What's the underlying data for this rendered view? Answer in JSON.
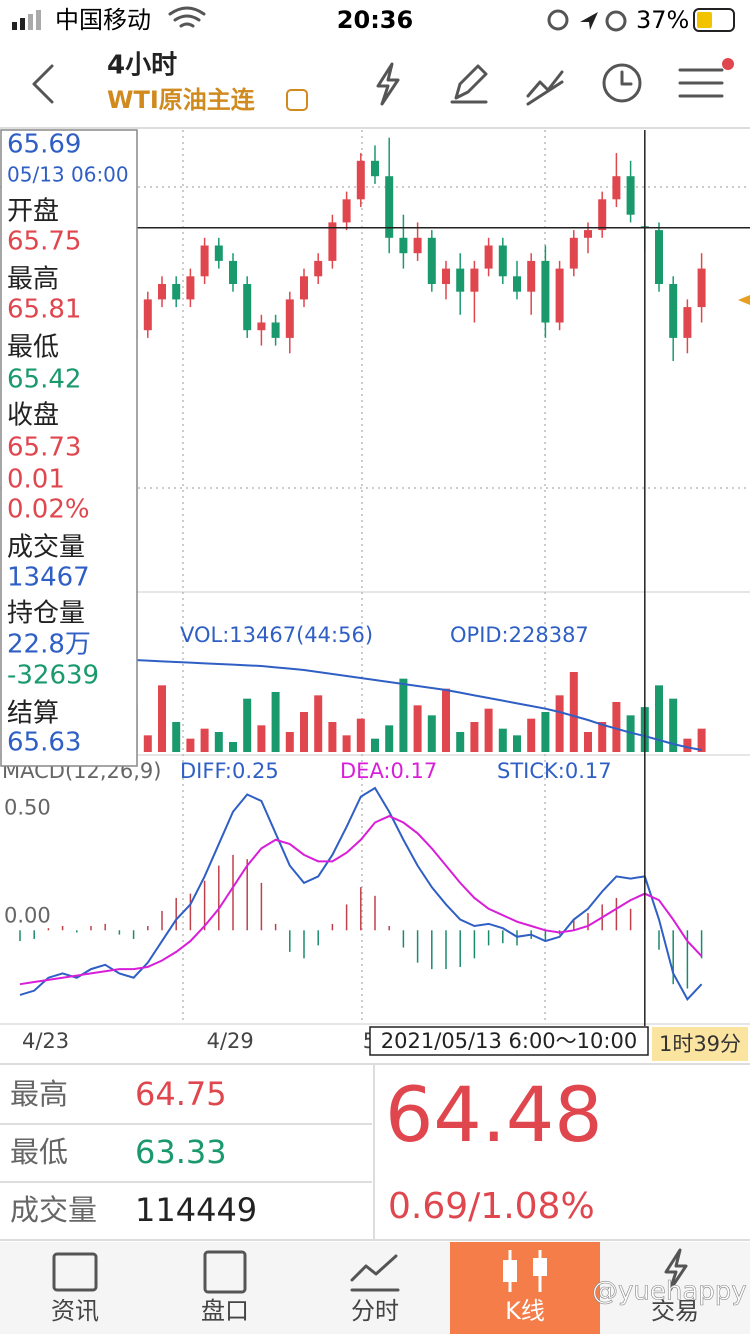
{
  "status_bar": {
    "carrier": "中国移动",
    "time": "20:36",
    "battery": "37%"
  },
  "header": {
    "title": "4小时",
    "subtitle": "WTI原油主连"
  },
  "info_panel": {
    "price": "65.69",
    "time": "05/13 06:00",
    "open": {
      "label": "开盘",
      "value": "65.75"
    },
    "high": {
      "label": "最高",
      "value": "65.81"
    },
    "low": {
      "label": "最低",
      "value": "65.42"
    },
    "close": {
      "label": "收盘",
      "values": [
        "65.73",
        "0.01",
        "0.02%"
      ]
    },
    "volume": {
      "label": "成交量",
      "value": "13467"
    },
    "open_interest": {
      "label": "持仓量",
      "values": [
        "22.8万",
        "-32639"
      ]
    },
    "settle": {
      "label": "结算",
      "value": "65.63"
    }
  },
  "chart_data": [
    {
      "type": "candlestick",
      "ylim": [
        61,
        67
      ],
      "categories": [
        "4/23",
        null,
        null,
        null,
        null,
        null,
        null,
        null,
        null,
        null,
        null,
        null,
        null,
        "4/29",
        null,
        null,
        null,
        null,
        null,
        null,
        null,
        null,
        null,
        null,
        "5",
        null,
        null,
        null,
        null,
        null,
        null,
        null,
        null,
        null,
        null,
        null,
        null,
        null,
        null,
        null,
        null,
        null,
        null,
        null,
        null,
        null,
        null,
        null,
        null
      ],
      "candles": [
        [
          64.0,
          64.3,
          63.8,
          64.2
        ],
        [
          64.2,
          64.4,
          63.9,
          64.0
        ],
        [
          64.0,
          64.5,
          63.9,
          64.4
        ],
        [
          64.4,
          64.6,
          64.1,
          64.2
        ],
        [
          64.2,
          64.3,
          63.8,
          63.9
        ],
        [
          63.9,
          64.4,
          63.8,
          64.3
        ],
        [
          64.3,
          64.5,
          64.0,
          64.1
        ],
        [
          64.1,
          64.4,
          64.0,
          64.3
        ],
        [
          64.3,
          64.5,
          64.1,
          64.4
        ],
        [
          64.4,
          64.9,
          64.3,
          64.8
        ],
        [
          64.8,
          65.1,
          64.7,
          65.0
        ],
        [
          65.0,
          65.1,
          64.7,
          64.8
        ],
        [
          64.8,
          65.2,
          64.7,
          65.1
        ],
        [
          65.1,
          65.6,
          65.0,
          65.5
        ],
        [
          65.5,
          65.6,
          65.2,
          65.3
        ],
        [
          65.3,
          65.4,
          64.9,
          65.0
        ],
        [
          65.0,
          65.1,
          64.3,
          64.4
        ],
        [
          64.4,
          64.6,
          64.2,
          64.5
        ],
        [
          64.5,
          64.6,
          64.2,
          64.3
        ],
        [
          64.3,
          64.9,
          64.1,
          64.8
        ],
        [
          64.8,
          65.2,
          64.7,
          65.1
        ],
        [
          65.1,
          65.4,
          65.0,
          65.3
        ],
        [
          65.3,
          65.9,
          65.2,
          65.8
        ],
        [
          65.8,
          66.2,
          65.7,
          66.1
        ],
        [
          66.1,
          66.7,
          66.0,
          66.6
        ],
        [
          66.6,
          66.8,
          66.3,
          66.4
        ],
        [
          66.4,
          66.9,
          65.4,
          65.6
        ],
        [
          65.6,
          65.9,
          65.2,
          65.4
        ],
        [
          65.4,
          65.8,
          65.3,
          65.6
        ],
        [
          65.6,
          65.7,
          64.9,
          65.0
        ],
        [
          65.0,
          65.3,
          64.8,
          65.2
        ],
        [
          65.2,
          65.4,
          64.6,
          64.9
        ],
        [
          64.9,
          65.3,
          64.5,
          65.2
        ],
        [
          65.2,
          65.6,
          65.1,
          65.5
        ],
        [
          65.5,
          65.6,
          65.0,
          65.1
        ],
        [
          65.1,
          65.3,
          64.8,
          64.9
        ],
        [
          64.9,
          65.4,
          64.6,
          65.3
        ],
        [
          65.3,
          65.5,
          64.3,
          64.5
        ],
        [
          64.5,
          65.3,
          64.4,
          65.2
        ],
        [
          65.2,
          65.7,
          65.1,
          65.6
        ],
        [
          65.6,
          65.8,
          65.4,
          65.7
        ],
        [
          65.7,
          66.2,
          65.6,
          66.1
        ],
        [
          66.1,
          66.7,
          66.0,
          66.4
        ],
        [
          66.4,
          66.6,
          65.8,
          65.9
        ],
        [
          65.75,
          65.81,
          65.42,
          65.73
        ],
        [
          65.7,
          65.8,
          64.9,
          65.0
        ],
        [
          65.0,
          65.1,
          64.0,
          64.3
        ],
        [
          64.3,
          64.8,
          64.1,
          64.7
        ],
        [
          64.7,
          65.4,
          64.5,
          65.2
        ]
      ],
      "cursor_label": "2021/05/13 6:00～10:00",
      "cursor_time": "1时39分"
    },
    {
      "type": "bar",
      "label": "VOL:13467(44:56)",
      "opid_label": "OPID:228387",
      "ylim": [
        0,
        30000
      ],
      "opid_ylim": [
        226000,
        241000
      ],
      "values": [
        8000,
        12000,
        6000,
        15000,
        9000,
        11000,
        7000,
        10000,
        14000,
        5000,
        20000,
        9000,
        4000,
        7000,
        6000,
        3000,
        16000,
        8000,
        18000,
        6000,
        12000,
        17000,
        9000,
        5000,
        10000,
        4000,
        8000,
        22000,
        14000,
        11000,
        19000,
        6000,
        9000,
        13000,
        7000,
        5000,
        10000,
        12000,
        17000,
        24000,
        6000,
        9000,
        15000,
        11000,
        13467,
        20000,
        16000,
        4000,
        7000
      ],
      "opid": [
        240500,
        240400,
        240300,
        240300,
        240200,
        240100,
        240000,
        239900,
        239800,
        239700,
        239600,
        239500,
        239400,
        239300,
        239200,
        239100,
        239000,
        238900,
        238700,
        238500,
        238300,
        238000,
        237700,
        237400,
        237100,
        236800,
        236500,
        236200,
        235900,
        235600,
        235300,
        234900,
        234500,
        234100,
        233700,
        233300,
        232900,
        232500,
        232000,
        231400,
        230800,
        230100,
        229500,
        228900,
        228387,
        227800,
        227200,
        226700,
        226300
      ]
    },
    {
      "type": "line",
      "title": "MACD(12,26,9)",
      "ylim": [
        -0.43,
        0.79
      ],
      "yticks": [
        {
          "value": 0.5,
          "label": "0.50"
        },
        {
          "value": 0,
          "label": "0.00"
        }
      ],
      "series": [
        {
          "name": "DIFF:0.25",
          "color": "#2f5fc4",
          "values": [
            -0.3,
            -0.28,
            -0.22,
            -0.2,
            -0.22,
            -0.18,
            -0.16,
            -0.2,
            -0.22,
            -0.15,
            -0.05,
            0.05,
            0.12,
            0.25,
            0.4,
            0.55,
            0.63,
            0.6,
            0.45,
            0.3,
            0.22,
            0.25,
            0.35,
            0.48,
            0.62,
            0.66,
            0.55,
            0.42,
            0.3,
            0.2,
            0.12,
            0.05,
            0.02,
            0.03,
            0.01,
            -0.03,
            -0.02,
            -0.05,
            -0.03,
            0.05,
            0.1,
            0.18,
            0.25,
            0.24,
            0.25,
            0.05,
            -0.2,
            -0.32,
            -0.25
          ]
        },
        {
          "name": "DEA:0.17",
          "color": "#d81ed8",
          "values": [
            -0.25,
            -0.24,
            -0.23,
            -0.22,
            -0.21,
            -0.2,
            -0.19,
            -0.18,
            -0.18,
            -0.17,
            -0.14,
            -0.1,
            -0.05,
            0.02,
            0.1,
            0.2,
            0.3,
            0.38,
            0.42,
            0.4,
            0.35,
            0.32,
            0.32,
            0.36,
            0.42,
            0.5,
            0.53,
            0.5,
            0.45,
            0.38,
            0.3,
            0.22,
            0.15,
            0.1,
            0.07,
            0.04,
            0.02,
            0.0,
            -0.01,
            0.0,
            0.02,
            0.06,
            0.1,
            0.14,
            0.17,
            0.14,
            0.05,
            -0.05,
            -0.12
          ]
        }
      ],
      "stick": {
        "name": "STICK:0.17",
        "values": [
          -0.05,
          -0.04,
          0.01,
          0.02,
          -0.01,
          0.02,
          0.03,
          -0.02,
          -0.04,
          0.02,
          0.09,
          0.15,
          0.17,
          0.23,
          0.3,
          0.35,
          0.33,
          0.22,
          0.03,
          -0.1,
          -0.13,
          -0.07,
          0.03,
          0.12,
          0.2,
          0.16,
          0.02,
          -0.08,
          -0.15,
          -0.18,
          -0.18,
          -0.17,
          -0.13,
          -0.07,
          -0.06,
          -0.07,
          -0.04,
          -0.05,
          -0.02,
          0.05,
          0.08,
          0.12,
          0.15,
          0.1,
          0.17,
          -0.09,
          -0.25,
          -0.27,
          -0.13
        ]
      }
    }
  ],
  "quote": {
    "high": {
      "label": "最高",
      "value": "64.75"
    },
    "low": {
      "label": "最低",
      "value": "63.33"
    },
    "volume": {
      "label": "成交量",
      "value": "114449"
    },
    "last": "64.48",
    "change": "0.69/1.08%"
  },
  "tabs": [
    "资讯",
    "盘口",
    "分时",
    "K线",
    "交易"
  ],
  "watermark": "@yuehappy"
}
